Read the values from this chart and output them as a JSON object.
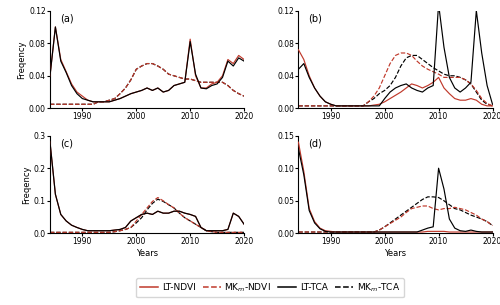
{
  "years": [
    1984,
    1985,
    1986,
    1987,
    1988,
    1989,
    1990,
    1991,
    1992,
    1993,
    1994,
    1995,
    1996,
    1997,
    1998,
    1999,
    2000,
    2001,
    2002,
    2003,
    2004,
    2005,
    2006,
    2007,
    2008,
    2009,
    2010,
    2011,
    2012,
    2013,
    2014,
    2015,
    2016,
    2017,
    2018,
    2019,
    2020
  ],
  "panel_a": {
    "lt_ndvi": [
      0.04,
      0.1,
      0.06,
      0.045,
      0.03,
      0.02,
      0.015,
      0.01,
      0.008,
      0.008,
      0.008,
      0.008,
      0.01,
      0.012,
      0.015,
      0.018,
      0.02,
      0.022,
      0.025,
      0.022,
      0.025,
      0.02,
      0.022,
      0.028,
      0.03,
      0.032,
      0.085,
      0.04,
      0.025,
      0.025,
      0.03,
      0.032,
      0.04,
      0.06,
      0.055,
      0.065,
      0.06
    ],
    "mkm_ndvi": [
      0.005,
      0.005,
      0.005,
      0.005,
      0.005,
      0.005,
      0.005,
      0.005,
      0.005,
      0.008,
      0.008,
      0.01,
      0.012,
      0.018,
      0.025,
      0.035,
      0.048,
      0.052,
      0.055,
      0.055,
      0.052,
      0.048,
      0.042,
      0.04,
      0.038,
      0.036,
      0.036,
      0.034,
      0.032,
      0.032,
      0.032,
      0.032,
      0.032,
      0.028,
      0.022,
      0.018,
      0.015
    ],
    "lt_tca": [
      0.04,
      0.1,
      0.058,
      0.044,
      0.028,
      0.018,
      0.012,
      0.01,
      0.008,
      0.008,
      0.008,
      0.008,
      0.01,
      0.012,
      0.015,
      0.018,
      0.02,
      0.022,
      0.025,
      0.022,
      0.025,
      0.02,
      0.022,
      0.028,
      0.03,
      0.032,
      0.082,
      0.042,
      0.025,
      0.024,
      0.028,
      0.03,
      0.038,
      0.058,
      0.052,
      0.062,
      0.058
    ],
    "mkm_tca": [
      0.005,
      0.005,
      0.005,
      0.005,
      0.005,
      0.005,
      0.005,
      0.005,
      0.005,
      0.008,
      0.008,
      0.01,
      0.012,
      0.018,
      0.025,
      0.035,
      0.048,
      0.052,
      0.055,
      0.055,
      0.052,
      0.048,
      0.042,
      0.04,
      0.038,
      0.036,
      0.036,
      0.034,
      0.032,
      0.032,
      0.032,
      0.032,
      0.032,
      0.028,
      0.022,
      0.018,
      0.015
    ],
    "ylim": [
      0,
      0.12
    ],
    "yticks": [
      0,
      0.04,
      0.08,
      0.12
    ],
    "label": "(a)"
  },
  "panel_b": {
    "lt_ndvi": [
      0.072,
      0.06,
      0.04,
      0.025,
      0.015,
      0.008,
      0.005,
      0.003,
      0.003,
      0.003,
      0.003,
      0.003,
      0.003,
      0.003,
      0.004,
      0.005,
      0.008,
      0.012,
      0.016,
      0.02,
      0.025,
      0.03,
      0.028,
      0.025,
      0.028,
      0.032,
      0.038,
      0.025,
      0.018,
      0.012,
      0.01,
      0.01,
      0.012,
      0.01,
      0.005,
      0.003,
      0.003
    ],
    "mkm_ndvi": [
      0.003,
      0.003,
      0.003,
      0.003,
      0.003,
      0.003,
      0.003,
      0.003,
      0.003,
      0.003,
      0.003,
      0.003,
      0.003,
      0.008,
      0.015,
      0.025,
      0.04,
      0.055,
      0.065,
      0.068,
      0.068,
      0.065,
      0.058,
      0.052,
      0.048,
      0.045,
      0.042,
      0.038,
      0.038,
      0.038,
      0.038,
      0.035,
      0.03,
      0.022,
      0.012,
      0.006,
      0.003
    ],
    "lt_tca": [
      0.048,
      0.055,
      0.038,
      0.025,
      0.015,
      0.008,
      0.005,
      0.003,
      0.003,
      0.003,
      0.003,
      0.003,
      0.003,
      0.003,
      0.003,
      0.003,
      0.012,
      0.02,
      0.025,
      0.028,
      0.03,
      0.025,
      0.022,
      0.02,
      0.025,
      0.028,
      0.128,
      0.075,
      0.038,
      0.025,
      0.02,
      0.025,
      0.032,
      0.12,
      0.068,
      0.028,
      0.005
    ],
    "mkm_tca": [
      0.003,
      0.003,
      0.003,
      0.003,
      0.003,
      0.003,
      0.003,
      0.003,
      0.003,
      0.003,
      0.003,
      0.003,
      0.003,
      0.008,
      0.012,
      0.018,
      0.022,
      0.028,
      0.038,
      0.052,
      0.062,
      0.065,
      0.065,
      0.06,
      0.055,
      0.05,
      0.046,
      0.042,
      0.04,
      0.04,
      0.038,
      0.035,
      0.03,
      0.02,
      0.01,
      0.005,
      0.003
    ],
    "ylim": [
      0,
      0.12
    ],
    "yticks": [
      0,
      0.04,
      0.08,
      0.12
    ],
    "label": "(b)"
  },
  "panel_c": {
    "lt_ndvi": [
      0.28,
      0.12,
      0.058,
      0.038,
      0.025,
      0.018,
      0.012,
      0.008,
      0.008,
      0.008,
      0.008,
      0.008,
      0.01,
      0.012,
      0.018,
      0.038,
      0.048,
      0.058,
      0.062,
      0.058,
      0.068,
      0.062,
      0.062,
      0.068,
      0.068,
      0.062,
      0.058,
      0.052,
      0.018,
      0.008,
      0.008,
      0.008,
      0.008,
      0.012,
      0.062,
      0.052,
      0.028
    ],
    "mkm_ndvi": [
      0.003,
      0.003,
      0.003,
      0.003,
      0.003,
      0.003,
      0.003,
      0.003,
      0.003,
      0.003,
      0.003,
      0.003,
      0.005,
      0.008,
      0.012,
      0.018,
      0.038,
      0.058,
      0.078,
      0.098,
      0.11,
      0.1,
      0.088,
      0.078,
      0.062,
      0.048,
      0.038,
      0.028,
      0.018,
      0.008,
      0.005,
      0.003,
      0.003,
      0.003,
      0.003,
      0.003,
      0.003
    ],
    "lt_tca": [
      0.28,
      0.12,
      0.058,
      0.038,
      0.025,
      0.018,
      0.012,
      0.008,
      0.008,
      0.008,
      0.008,
      0.008,
      0.01,
      0.012,
      0.018,
      0.038,
      0.048,
      0.058,
      0.062,
      0.058,
      0.068,
      0.062,
      0.062,
      0.068,
      0.068,
      0.062,
      0.058,
      0.052,
      0.018,
      0.008,
      0.008,
      0.008,
      0.008,
      0.012,
      0.062,
      0.052,
      0.028
    ],
    "mkm_tca": [
      0.003,
      0.003,
      0.003,
      0.003,
      0.003,
      0.003,
      0.003,
      0.003,
      0.003,
      0.003,
      0.003,
      0.003,
      0.005,
      0.008,
      0.012,
      0.018,
      0.032,
      0.048,
      0.072,
      0.092,
      0.105,
      0.098,
      0.088,
      0.078,
      0.062,
      0.048,
      0.038,
      0.028,
      0.018,
      0.008,
      0.005,
      0.003,
      0.003,
      0.003,
      0.003,
      0.003,
      0.003
    ],
    "ylim": [
      0,
      0.3
    ],
    "yticks": [
      0,
      0.1,
      0.2,
      0.3
    ],
    "label": "(c)"
  },
  "panel_d": {
    "lt_ndvi": [
      0.14,
      0.095,
      0.038,
      0.018,
      0.008,
      0.004,
      0.003,
      0.002,
      0.002,
      0.002,
      0.002,
      0.002,
      0.002,
      0.002,
      0.002,
      0.002,
      0.002,
      0.002,
      0.002,
      0.002,
      0.002,
      0.002,
      0.002,
      0.002,
      0.003,
      0.003,
      0.003,
      0.003,
      0.002,
      0.002,
      0.002,
      0.002,
      0.002,
      0.002,
      0.002,
      0.002,
      0.002
    ],
    "mkm_ndvi": [
      0.002,
      0.002,
      0.002,
      0.002,
      0.002,
      0.002,
      0.002,
      0.002,
      0.002,
      0.002,
      0.002,
      0.002,
      0.002,
      0.002,
      0.002,
      0.005,
      0.01,
      0.015,
      0.02,
      0.025,
      0.032,
      0.038,
      0.04,
      0.042,
      0.042,
      0.038,
      0.036,
      0.038,
      0.038,
      0.04,
      0.038,
      0.036,
      0.032,
      0.028,
      0.022,
      0.018,
      0.012
    ],
    "lt_tca": [
      0.13,
      0.09,
      0.035,
      0.016,
      0.007,
      0.003,
      0.002,
      0.002,
      0.002,
      0.002,
      0.002,
      0.002,
      0.002,
      0.002,
      0.002,
      0.002,
      0.002,
      0.002,
      0.002,
      0.002,
      0.002,
      0.002,
      0.002,
      0.005,
      0.008,
      0.01,
      0.1,
      0.068,
      0.022,
      0.008,
      0.004,
      0.003,
      0.005,
      0.003,
      0.002,
      0.002,
      0.002
    ],
    "mkm_tca": [
      0.002,
      0.002,
      0.002,
      0.002,
      0.002,
      0.002,
      0.002,
      0.002,
      0.002,
      0.002,
      0.002,
      0.002,
      0.002,
      0.002,
      0.002,
      0.005,
      0.01,
      0.016,
      0.022,
      0.028,
      0.034,
      0.04,
      0.046,
      0.052,
      0.056,
      0.056,
      0.055,
      0.05,
      0.044,
      0.038,
      0.036,
      0.032,
      0.028,
      0.025,
      0.022,
      0.018,
      0.012
    ],
    "ylim": [
      0,
      0.15
    ],
    "yticks": [
      0,
      0.05,
      0.1,
      0.15
    ],
    "label": "(d)"
  },
  "color_red": "#c0392b",
  "color_black": "#000000",
  "color_red_light": "#e08080"
}
